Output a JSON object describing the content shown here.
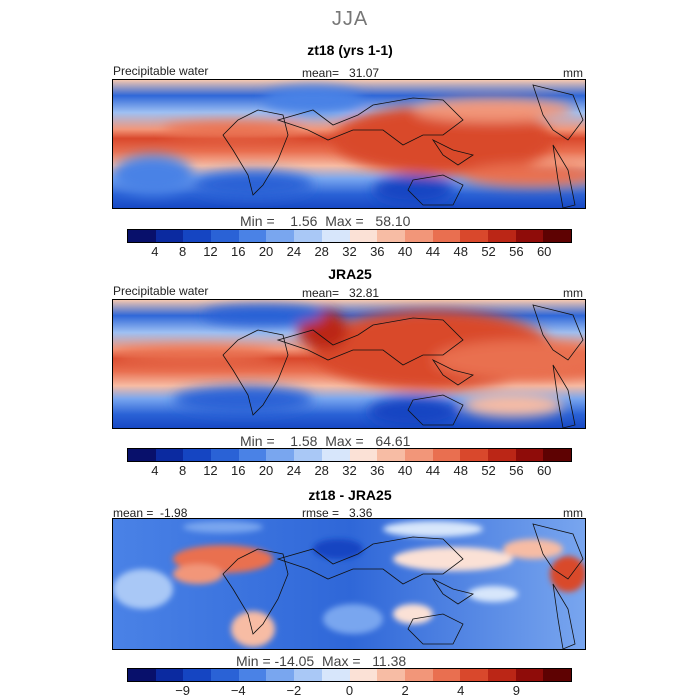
{
  "page_title": "JJA",
  "panels": [
    {
      "title": "zt18 (yrs 1-1)",
      "var_label": "Precipitable water",
      "stat_label": "mean=",
      "stat_value": "31.07",
      "units": "mm",
      "min_label": "Min =",
      "min_value": "1.56",
      "max_label": "Max =",
      "max_value": "58.10"
    },
    {
      "title": "JRA25",
      "var_label": "Precipitable water",
      "stat_label": "mean=",
      "stat_value": "32.81",
      "units": "mm",
      "min_label": "Min =",
      "min_value": "1.58",
      "max_label": "Max =",
      "max_value": "64.61"
    },
    {
      "title": "zt18 - JRA25",
      "mean_label": "mean =",
      "mean_value": "-1.98",
      "rmse_label": "rmse =",
      "rmse_value": "3.36",
      "units": "mm",
      "min_label": "Min =",
      "min_value": "-14.05",
      "max_label": "Max =",
      "max_value": "11.38"
    }
  ],
  "colorbar_field": {
    "colors": [
      "#08106b",
      "#0b2aa0",
      "#1545c2",
      "#2a62d6",
      "#4a82e6",
      "#79a6ef",
      "#a9c8f6",
      "#d7e6fb",
      "#fbe1d6",
      "#f7bca4",
      "#f29679",
      "#e96f50",
      "#d9482c",
      "#bb2616",
      "#8f0c09",
      "#5e0202"
    ],
    "tick_labels": [
      "4",
      "8",
      "12",
      "16",
      "20",
      "24",
      "28",
      "32",
      "36",
      "40",
      "44",
      "48",
      "52",
      "56",
      "60"
    ]
  },
  "colorbar_diff": {
    "colors": [
      "#08106b",
      "#0b2aa0",
      "#1545c2",
      "#2a62d6",
      "#4a82e6",
      "#79a6ef",
      "#a9c8f6",
      "#d7e6fb",
      "#fbe1d6",
      "#f7bca4",
      "#f29679",
      "#e96f50",
      "#d9482c",
      "#bb2616",
      "#8f0c09",
      "#5e0202"
    ],
    "tick_labels": [
      "-9",
      "-4",
      "-2",
      "0",
      "2",
      "4",
      "9"
    ]
  }
}
